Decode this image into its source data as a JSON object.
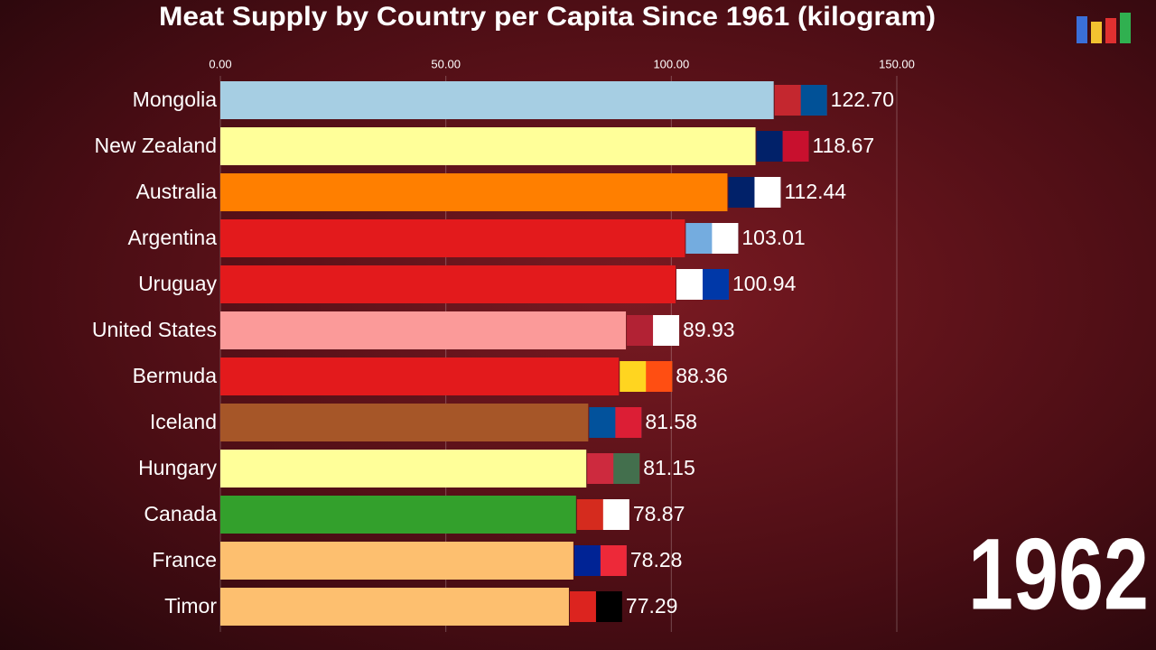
{
  "chart_data": {
    "type": "bar",
    "orientation": "horizontal",
    "title": "Meat Supply by Country per Capita Since 1961 (kilogram)",
    "annotation": "1962",
    "categories": [
      "Mongolia",
      "New Zealand",
      "Australia",
      "Argentina",
      "Uruguay",
      "United States",
      "Bermuda",
      "Iceland",
      "Hungary",
      "Canada",
      "France",
      "Timor"
    ],
    "values": [
      122.7,
      118.67,
      112.44,
      103.01,
      100.94,
      89.93,
      88.36,
      81.58,
      81.15,
      78.87,
      78.28,
      77.29
    ],
    "value_labels": [
      "122.70",
      "118.67",
      "112.44",
      "103.01",
      "100.94",
      "89.93",
      "88.36",
      "81.58",
      "81.15",
      "78.87",
      "78.28",
      "77.29"
    ],
    "colors": [
      "#a6cee3",
      "#ffff99",
      "#ff7f00",
      "#e31a1c",
      "#e31a1c",
      "#fb9a99",
      "#e31a1c",
      "#a65628",
      "#ffff99",
      "#33a02c",
      "#fdbf6f",
      "#fdbf6f"
    ],
    "xlim": [
      0,
      150
    ],
    "xticks": [
      {
        "value": 0,
        "label": "0.00"
      },
      {
        "value": 50,
        "label": "50.00"
      },
      {
        "value": 100,
        "label": "100.00"
      },
      {
        "value": 150,
        "label": "150.00"
      }
    ],
    "grid": true
  }
}
